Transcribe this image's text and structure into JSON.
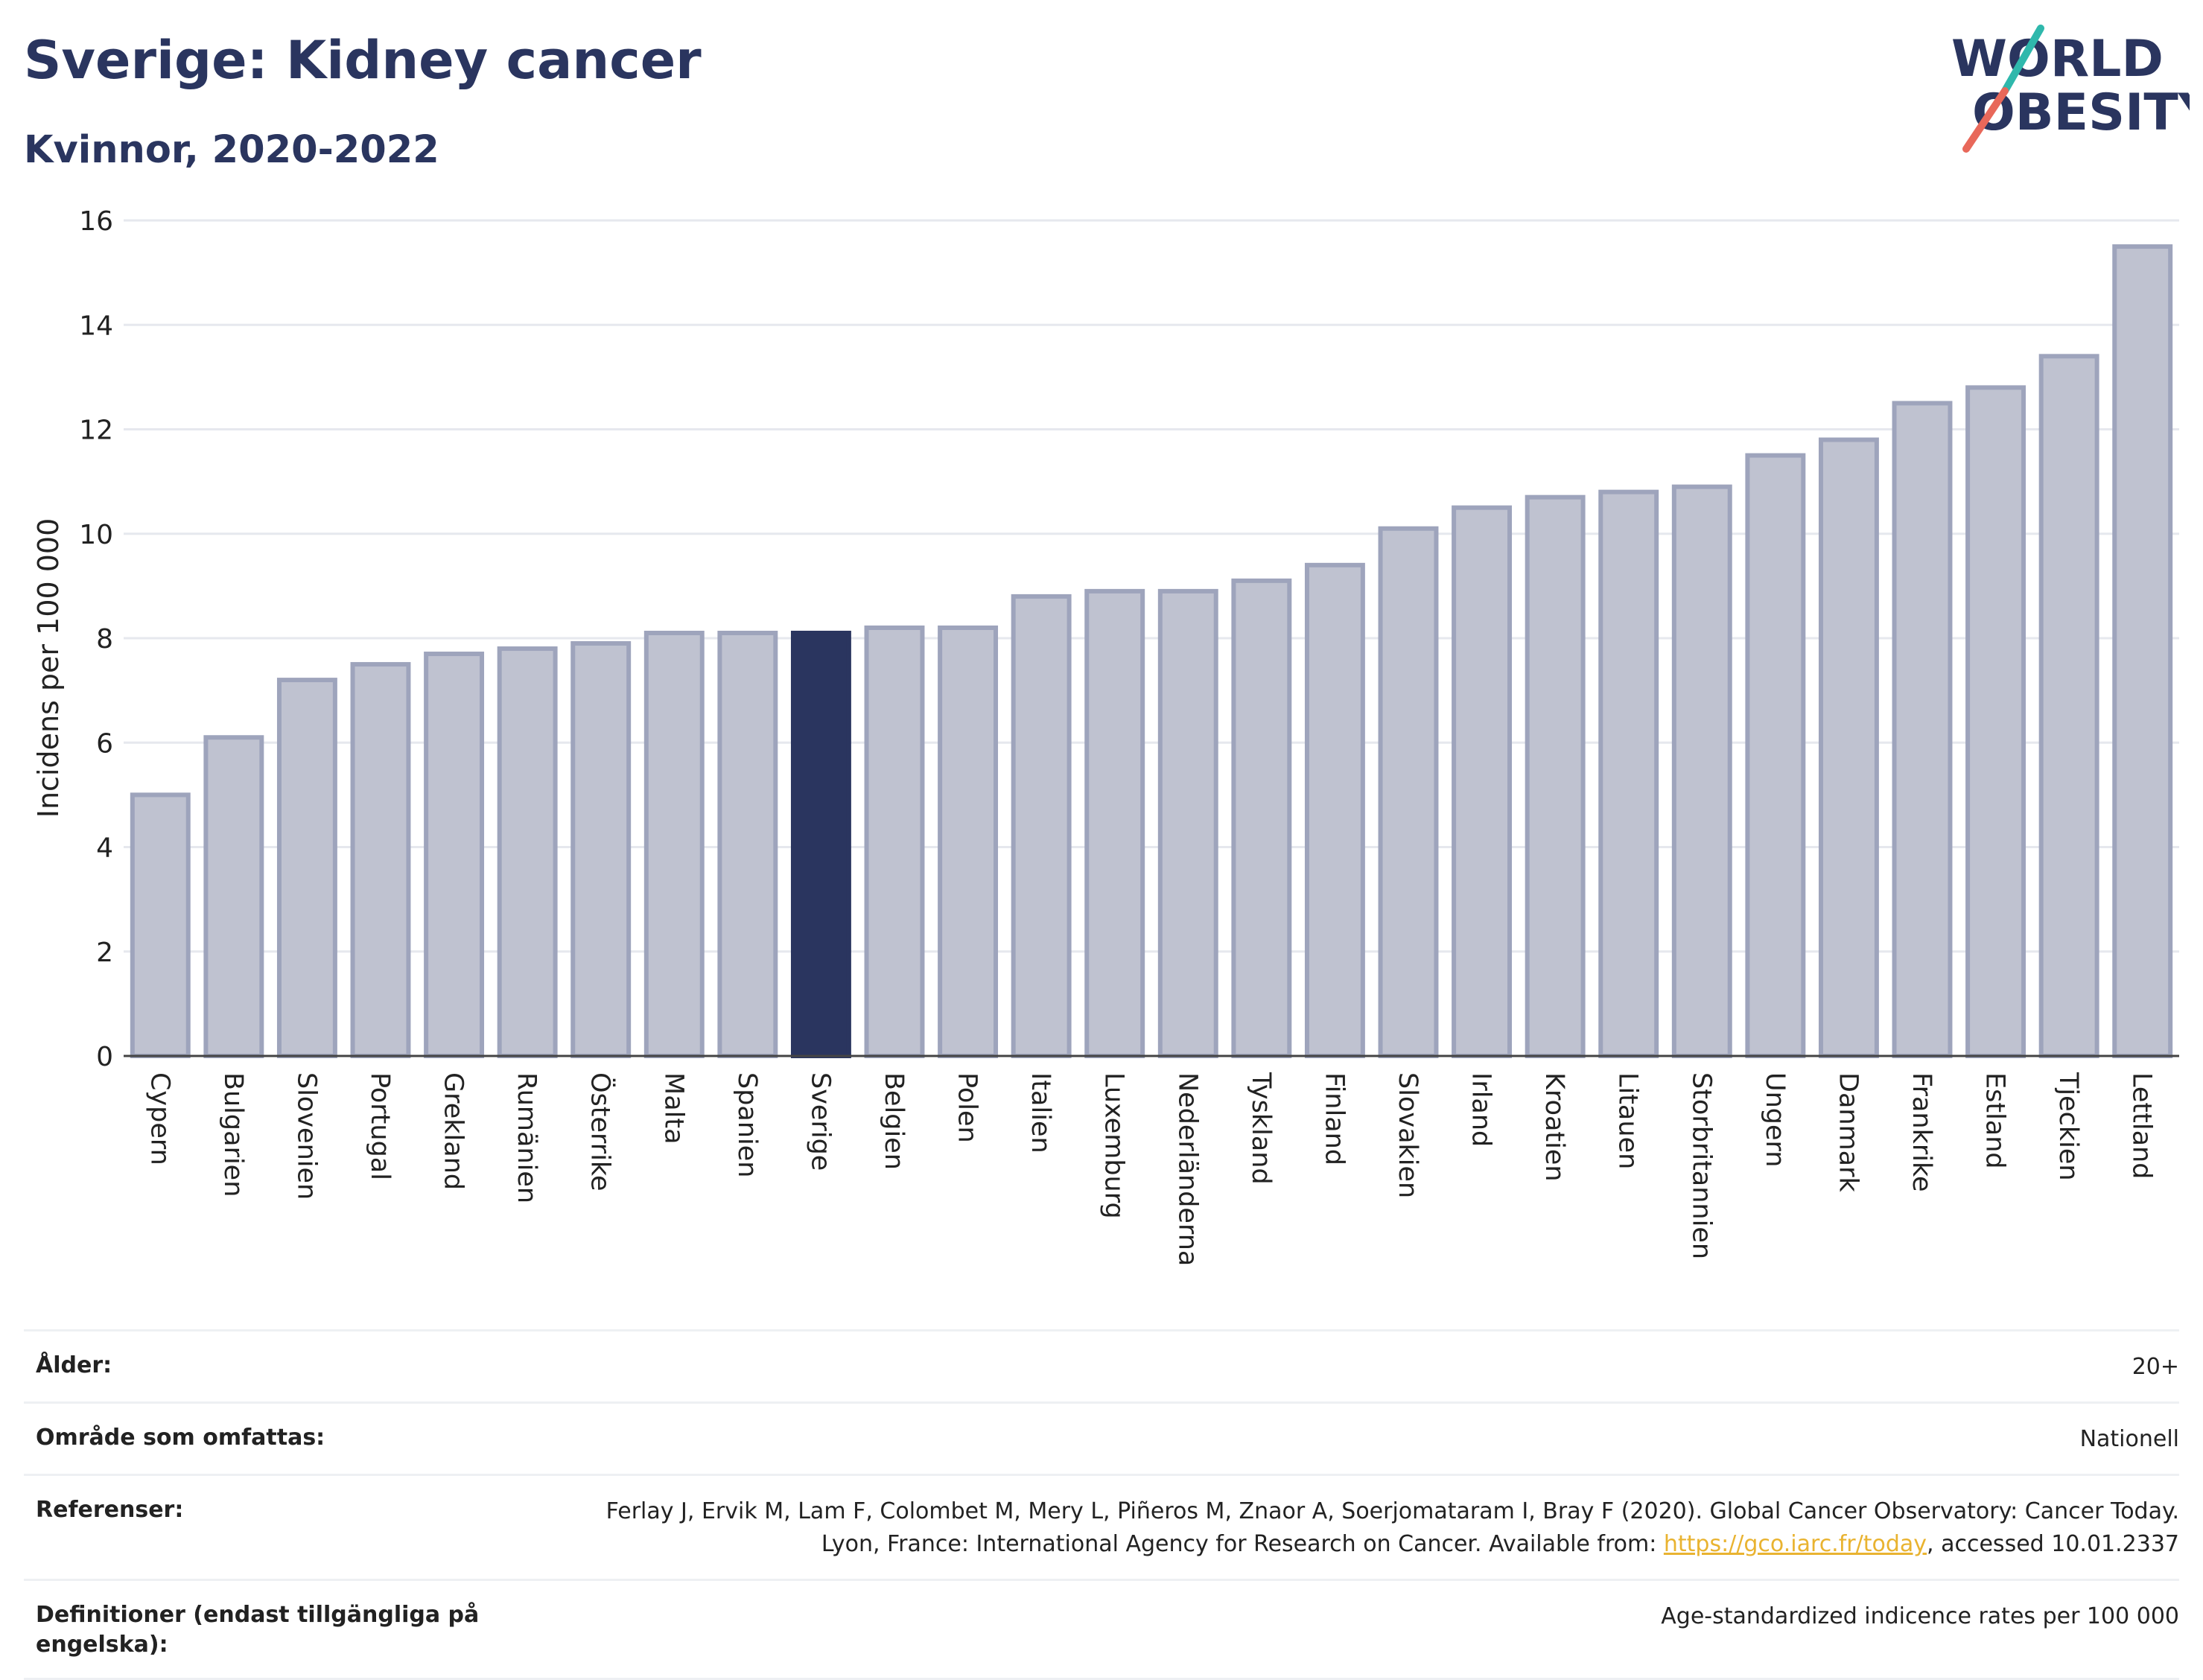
{
  "header": {
    "title": "Sverige: Kidney cancer",
    "subtitle": "Kvinnor, 2020-2022"
  },
  "logo": {
    "line1": "WORLD",
    "line2": "OBESITY",
    "accent_teal": "#2fb8ac",
    "accent_coral": "#e8685a"
  },
  "colors": {
    "bar": "#bfc2d0",
    "bar_edge": "#9ea4bc",
    "highlight": "#2a355f",
    "text": "#2a355f"
  },
  "chart_data": {
    "type": "bar",
    "title": "",
    "xlabel": "",
    "ylabel": "Incidens per 100 000",
    "ylim": [
      0,
      16
    ],
    "yticks": [
      0,
      2,
      4,
      6,
      8,
      10,
      12,
      14,
      16
    ],
    "grid": true,
    "highlight_category": "Sverige",
    "categories": [
      "Cypern",
      "Bulgarien",
      "Slovenien",
      "Portugal",
      "Grekland",
      "Rumänien",
      "Österrike",
      "Malta",
      "Spanien",
      "Sverige",
      "Belgien",
      "Polen",
      "Italien",
      "Luxemburg",
      "Nederländerna",
      "Tyskland",
      "Finland",
      "Slovakien",
      "Irland",
      "Kroatien",
      "Litauen",
      "Storbritannien",
      "Ungern",
      "Danmark",
      "Frankrike",
      "Estland",
      "Tjeckien",
      "Lettland"
    ],
    "values": [
      5.0,
      6.1,
      7.2,
      7.5,
      7.7,
      7.8,
      7.9,
      8.1,
      8.1,
      8.1,
      8.2,
      8.2,
      8.8,
      8.9,
      8.9,
      9.1,
      9.4,
      10.1,
      10.5,
      10.7,
      10.8,
      10.9,
      11.5,
      11.8,
      12.5,
      12.8,
      13.4,
      15.5
    ]
  },
  "meta": {
    "age_label": "Ålder:",
    "age_value": "20+",
    "area_label": "Område som omfattas:",
    "area_value": "Nationell",
    "ref_label": "Referenser:",
    "ref_text_1": "Ferlay J, Ervik M, Lam F, Colombet M, Mery L, Piñeros M, Znaor A, Soerjomataram I, Bray F (2020). Global Cancer Observatory: Cancer Today. Lyon, France: International Agency for Research on Cancer. Available from: ",
    "ref_link": "https://gco.iarc.fr/today",
    "ref_text_2": ", accessed 10.01.2337",
    "def_label": "Definitioner (endast tillgängliga på engelska):",
    "def_value": "Age-standardized indicence rates per 100 000"
  }
}
